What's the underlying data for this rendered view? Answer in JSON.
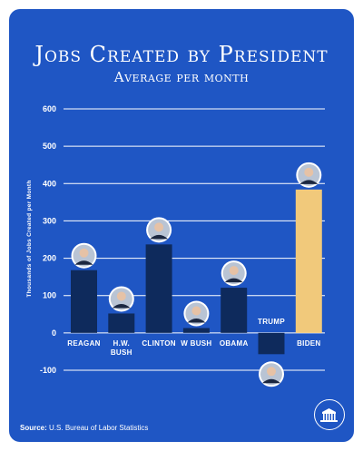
{
  "header": {
    "title": "Jobs Created by President",
    "subtitle": "Average per month"
  },
  "footer": {
    "source_label": "Source:",
    "source_text": "U.S. Bureau of Labor Statistics"
  },
  "colors": {
    "background": "#1f56c4",
    "bar": "#0e2a5c",
    "highlight_bar": "#f1c97b",
    "gridline": "#ffffff",
    "text": "#ffffff"
  },
  "icons": {
    "logo": "white-house-seal-icon"
  },
  "chart_data": {
    "type": "bar",
    "ylabel": "Thousands of Jobs Created per Month",
    "xlabel": "",
    "ylim": [
      -100,
      600
    ],
    "yticks": [
      -100,
      0,
      100,
      200,
      300,
      400,
      500,
      600
    ],
    "grid": true,
    "categories": [
      "Reagan",
      "H.W. Bush",
      "Clinton",
      "W Bush",
      "Obama",
      "Trump",
      "Biden"
    ],
    "values": [
      168,
      52,
      237,
      13,
      121,
      -57,
      384
    ],
    "highlight": "Biden"
  }
}
